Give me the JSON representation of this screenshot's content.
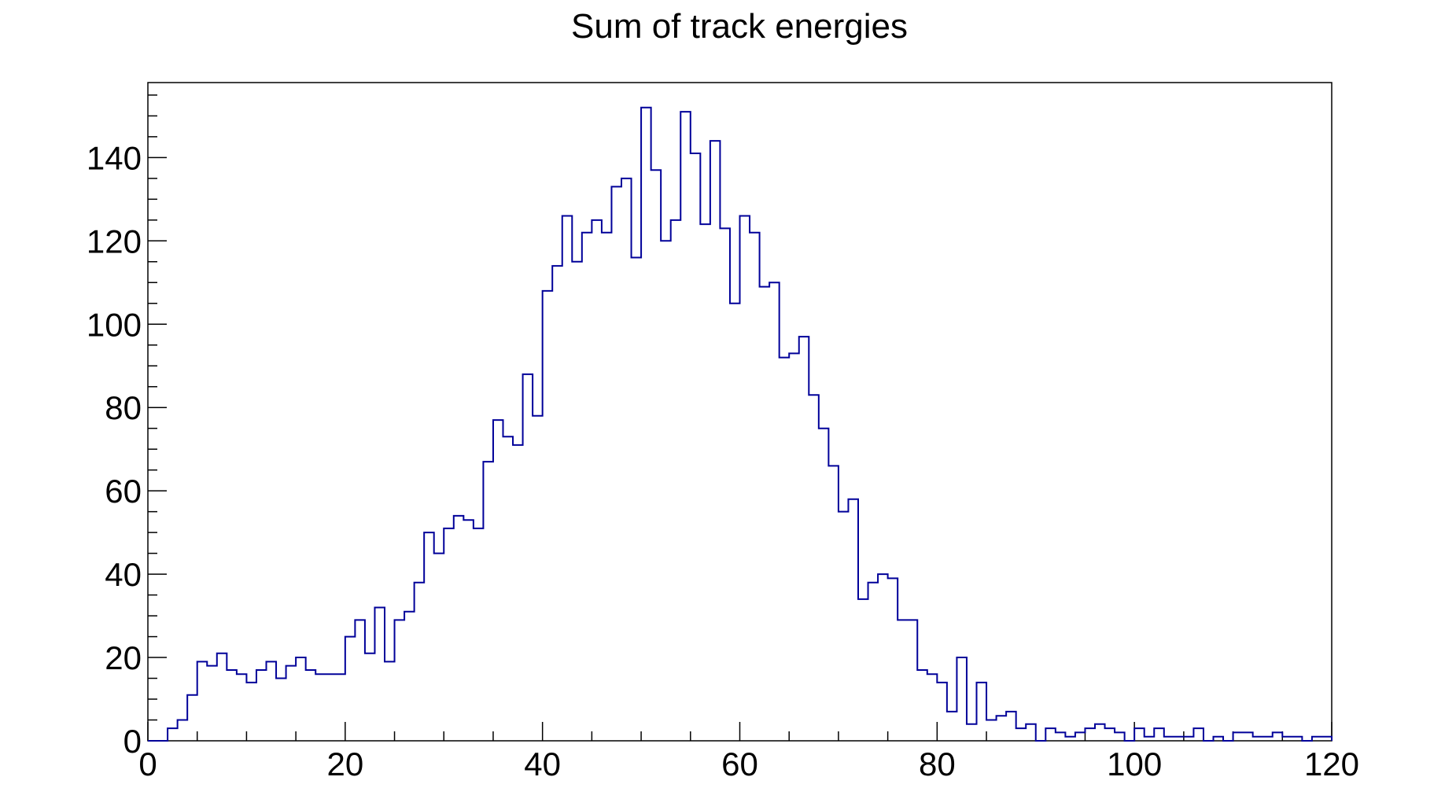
{
  "chart_data": {
    "type": "histogram",
    "title": "Sum of track energies",
    "xlabel": "",
    "ylabel": "",
    "xlim": [
      0,
      120
    ],
    "ylim": [
      0,
      158
    ],
    "bin_width": 1,
    "x_ticks": [
      "0",
      "20",
      "40",
      "60",
      "80",
      "100",
      "120"
    ],
    "y_ticks": [
      "0",
      "20",
      "40",
      "60",
      "80",
      "100",
      "120",
      "140"
    ],
    "grid": false,
    "legend": "none",
    "line_color": "#000099",
    "bins_x_start": [
      0,
      1,
      2,
      3,
      4,
      5,
      6,
      7,
      8,
      9,
      10,
      11,
      12,
      13,
      14,
      15,
      16,
      17,
      18,
      19,
      20,
      21,
      22,
      23,
      24,
      25,
      26,
      27,
      28,
      29,
      30,
      31,
      32,
      33,
      34,
      35,
      36,
      37,
      38,
      39,
      40,
      41,
      42,
      43,
      44,
      45,
      46,
      47,
      48,
      49,
      50,
      51,
      52,
      53,
      54,
      55,
      56,
      57,
      58,
      59,
      60,
      61,
      62,
      63,
      64,
      65,
      66,
      67,
      68,
      69,
      70,
      71,
      72,
      73,
      74,
      75,
      76,
      77,
      78,
      79,
      80,
      81,
      82,
      83,
      84,
      85,
      86,
      87,
      88,
      89,
      90,
      91,
      92,
      93,
      94,
      95,
      96,
      97,
      98,
      99,
      100,
      101,
      102,
      103,
      104,
      105,
      106,
      107,
      108,
      109,
      110,
      111,
      112,
      113,
      114,
      115,
      116,
      117,
      118,
      119
    ],
    "values": [
      0,
      0,
      3,
      5,
      11,
      19,
      18,
      21,
      17,
      16,
      14,
      17,
      19,
      15,
      18,
      20,
      17,
      16,
      16,
      16,
      25,
      29,
      21,
      32,
      19,
      29,
      31,
      38,
      50,
      45,
      51,
      54,
      53,
      51,
      67,
      77,
      73,
      71,
      88,
      78,
      108,
      114,
      126,
      115,
      122,
      125,
      122,
      133,
      135,
      116,
      152,
      137,
      120,
      125,
      151,
      141,
      124,
      144,
      123,
      105,
      126,
      122,
      109,
      110,
      92,
      93,
      97,
      83,
      75,
      66,
      55,
      58,
      34,
      38,
      40,
      39,
      29,
      29,
      17,
      16,
      14,
      7,
      20,
      4,
      14,
      5,
      6,
      7,
      3,
      4,
      0,
      3,
      2,
      1,
      2,
      3,
      4,
      3,
      2,
      0,
      3,
      1,
      3,
      1,
      1,
      1,
      3,
      0,
      1,
      0,
      2,
      2,
      1,
      1,
      2,
      1,
      1,
      0,
      1,
      1
    ]
  }
}
